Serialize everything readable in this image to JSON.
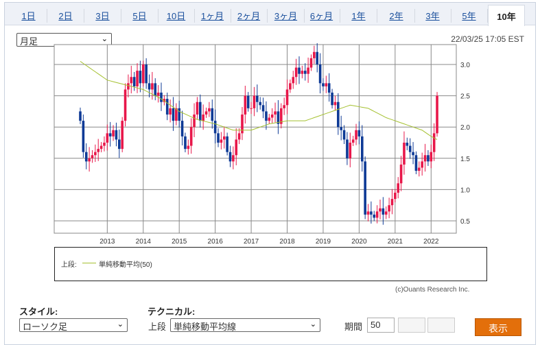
{
  "tabs": [
    {
      "label": "1日"
    },
    {
      "label": "2日"
    },
    {
      "label": "3日"
    },
    {
      "label": "5日"
    },
    {
      "label": "10日"
    },
    {
      "label": "1ヶ月"
    },
    {
      "label": "2ヶ月"
    },
    {
      "label": "3ヶ月"
    },
    {
      "label": "6ヶ月"
    },
    {
      "label": "1年"
    },
    {
      "label": "2年"
    },
    {
      "label": "3年"
    },
    {
      "label": "5年"
    },
    {
      "label": "10年"
    }
  ],
  "active_tab": "10年",
  "period_select": "月足",
  "timestamp": "22/03/25 17:05 EST",
  "legend": {
    "label": "上段:",
    "indicator": "単純移動平均(50)"
  },
  "copyright": "(c)Ouants Research Inc.",
  "controls": {
    "style_label": "スタイル:",
    "style_value": "ローソク足",
    "technical_label": "テクニカル:",
    "upper_label": "上段",
    "technical_value": "単純移動平均線",
    "period_label": "期間",
    "period_value": "50",
    "submit": "表示"
  },
  "colors": {
    "up": "#e8174a",
    "down": "#0e3a96",
    "ma": "#a4c02e",
    "grid": "#888888"
  },
  "chart_data": {
    "type": "candlestick",
    "interval": "monthly",
    "start": "2012-04",
    "x_ticks": [
      "2013",
      "2014",
      "2015",
      "2016",
      "2017",
      "2018",
      "2019",
      "2020",
      "2021",
      "2022"
    ],
    "y_ticks": [
      "0.5",
      "1.0",
      "1.5",
      "2.0",
      "2.5",
      "3.0"
    ],
    "ylim": [
      0.3,
      3.3
    ],
    "first_open": 2.25,
    "close": [
      2.1,
      1.6,
      1.45,
      1.5,
      1.55,
      1.6,
      1.65,
      1.7,
      1.75,
      1.9,
      1.85,
      1.95,
      1.8,
      1.65,
      2.1,
      2.6,
      2.7,
      2.8,
      2.65,
      2.9,
      2.7,
      3.0,
      2.7,
      2.6,
      2.7,
      2.5,
      2.55,
      2.4,
      2.45,
      2.2,
      2.3,
      2.1,
      2.3,
      2.1,
      1.85,
      1.65,
      1.7,
      2.0,
      2.2,
      2.4,
      2.1,
      2.2,
      2.25,
      2.3,
      2.1,
      1.9,
      1.75,
      1.8,
      1.85,
      1.6,
      1.45,
      1.55,
      1.8,
      1.9,
      2.2,
      2.5,
      2.3,
      2.3,
      2.5,
      2.4,
      2.35,
      2.25,
      2.1,
      2.15,
      2.2,
      2.25,
      2.05,
      2.3,
      2.35,
      2.6,
      2.7,
      2.8,
      2.95,
      2.85,
      2.9,
      2.85,
      2.95,
      3.1,
      3.2,
      3.0,
      2.7,
      2.65,
      2.7,
      2.55,
      2.35,
      2.4,
      2.0,
      1.95,
      1.8,
      1.5,
      1.75,
      1.8,
      1.95,
      1.85,
      1.45,
      0.6,
      0.65,
      0.6,
      0.55,
      0.65,
      0.7,
      0.6,
      0.65,
      0.75,
      0.85,
      0.95,
      1.1,
      1.4,
      1.75,
      1.7,
      1.6,
      1.55,
      1.3,
      1.35,
      1.45,
      1.55,
      1.45,
      1.6,
      1.9,
      2.5
    ],
    "ma_knots": [
      [
        0,
        3.05
      ],
      [
        9,
        2.75
      ],
      [
        21,
        2.6
      ],
      [
        27,
        2.45
      ],
      [
        33,
        2.25
      ],
      [
        39,
        2.12
      ],
      [
        45,
        2.05
      ],
      [
        51,
        1.95
      ],
      [
        57,
        1.95
      ],
      [
        63,
        2.05
      ],
      [
        69,
        2.1
      ],
      [
        75,
        2.1
      ],
      [
        81,
        2.2
      ],
      [
        87,
        2.3
      ],
      [
        90,
        2.35
      ],
      [
        96,
        2.3
      ],
      [
        102,
        2.15
      ],
      [
        108,
        2.05
      ],
      [
        114,
        1.95
      ],
      [
        117,
        1.85
      ],
      [
        119,
        1.8
      ]
    ],
    "ma_name": "単純移動平均(50)"
  }
}
